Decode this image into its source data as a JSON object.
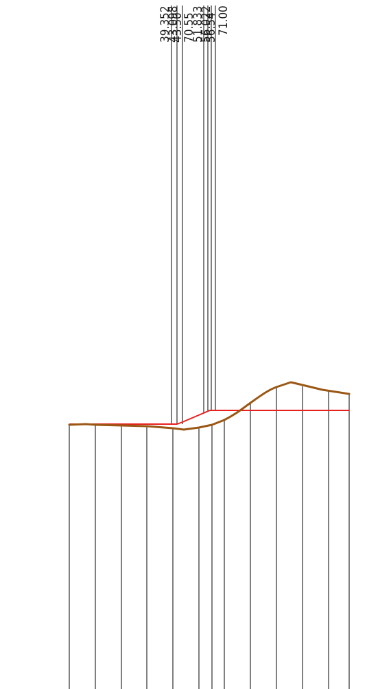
{
  "drawing": {
    "labels": [
      {
        "text": "39.352"
      },
      {
        "text": "43.098"
      },
      {
        "text": "43.50"
      },
      {
        "text": "70.55"
      },
      {
        "text": "51.833"
      },
      {
        "text": "56.022"
      },
      {
        "text": "56.54"
      },
      {
        "text": "71.00"
      }
    ],
    "colors": {
      "ground_line": "#9b5714",
      "design_line": "#e8201e",
      "grid_lines": "#000000"
    }
  }
}
